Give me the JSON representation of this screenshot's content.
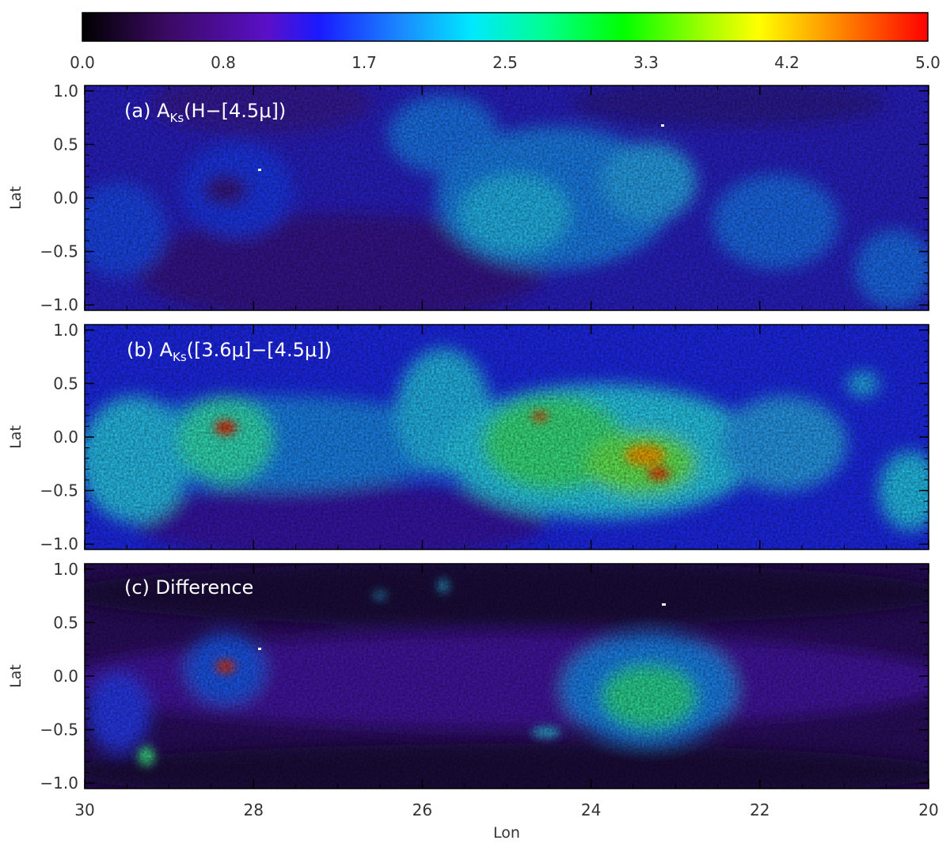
{
  "chart_data": {
    "type": "heatmap",
    "colorbar": {
      "ticks": [
        "0.0",
        "0.8",
        "1.7",
        "2.5",
        "3.3",
        "4.2",
        "5.0"
      ],
      "range": [
        0.0,
        5.0
      ],
      "colormap": "rainbow (black-purple-blue-cyan-green-yellow-red)"
    },
    "x_axis": {
      "label": "Lon",
      "range": [
        30,
        20
      ],
      "ticks": [
        "30",
        "28",
        "26",
        "24",
        "22",
        "20"
      ],
      "tick_values": [
        30,
        28,
        26,
        24,
        22,
        20
      ]
    },
    "y_axis": {
      "label": "Lat",
      "range": [
        -1.05,
        1.05
      ],
      "ticks": [
        "1.0",
        "0.5",
        "0.0",
        "−0.5",
        "−1.0"
      ],
      "tick_values": [
        1.0,
        0.5,
        0.0,
        -0.5,
        -1.0
      ]
    },
    "panels": [
      {
        "id": "a",
        "label_prefix": "(a) A",
        "label_sub": "Ks",
        "label_suffix": "(H−[4.5μ])",
        "background_value": 0.8
      },
      {
        "id": "b",
        "label_prefix": "(b) A",
        "label_sub": "Ks",
        "label_suffix": "([3.6μ]−[4.5μ])",
        "background_value": 1.2
      },
      {
        "id": "c",
        "label_prefix": "(c) Difference",
        "label_sub": "",
        "label_suffix": "",
        "background_value": 0.4
      }
    ]
  }
}
